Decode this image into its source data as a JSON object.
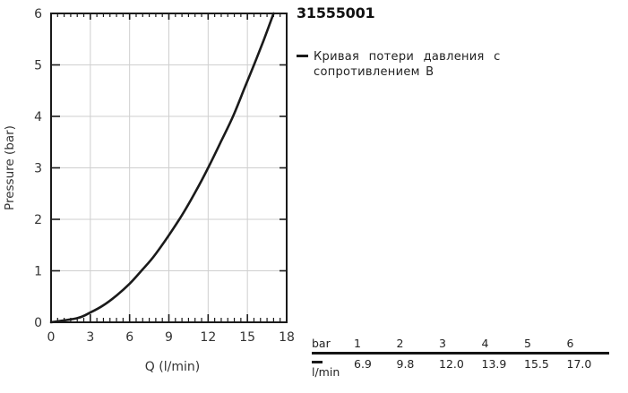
{
  "title": "31555001",
  "legend": {
    "lines": [
      "Кривая потери давления с",
      "сопротивлением B"
    ],
    "swatch_color": "#1a1a1a"
  },
  "chart_data": {
    "type": "line",
    "title": "",
    "xlabel": "Q (l/min)",
    "ylabel": "Pressure (bar)",
    "xlim": [
      0,
      18
    ],
    "ylim": [
      0,
      6
    ],
    "x_major_ticks": [
      0,
      3,
      6,
      9,
      12,
      15,
      18
    ],
    "x_minor_step": 0.5,
    "y_major_ticks": [
      0,
      1,
      2,
      3,
      4,
      5,
      6
    ],
    "x_gridlines": [
      3,
      6,
      9,
      12,
      15
    ],
    "y_gridlines": [
      1,
      2,
      3,
      4,
      5
    ],
    "grid": true,
    "frame": true,
    "colors": {
      "curve": "#1a1a1a",
      "grid": "#cfcfcf",
      "axis": "#1a1a1a",
      "text": "#333333"
    },
    "series": [
      {
        "name": "Кривая потери давления с сопротивлением B",
        "points": [
          [
            0,
            0
          ],
          [
            2,
            0.08
          ],
          [
            3,
            0.19
          ],
          [
            4,
            0.33
          ],
          [
            5,
            0.52
          ],
          [
            6,
            0.75
          ],
          [
            6.9,
            1
          ],
          [
            8,
            1.33
          ],
          [
            9.8,
            2
          ],
          [
            11,
            2.52
          ],
          [
            12,
            3
          ],
          [
            13,
            3.52
          ],
          [
            13.9,
            4
          ],
          [
            14.8,
            4.56
          ],
          [
            15.5,
            5
          ],
          [
            16.2,
            5.45
          ],
          [
            17,
            6
          ]
        ]
      }
    ]
  },
  "flow_table": {
    "header_label": "bar",
    "pressures": [
      "1",
      "2",
      "3",
      "4",
      "5",
      "6"
    ],
    "unit_label": "l/min",
    "flows": [
      "6.9",
      "9.8",
      "12.0",
      "13.9",
      "15.5",
      "17.0"
    ]
  }
}
